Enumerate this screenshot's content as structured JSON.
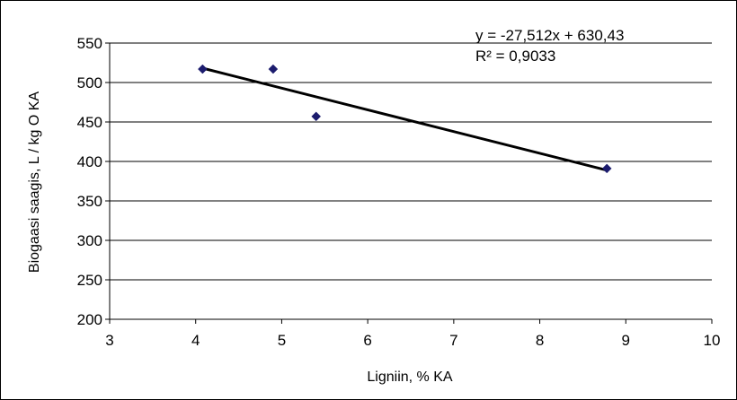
{
  "chart_data": {
    "type": "scatter",
    "title": "",
    "xlabel": "Ligniin, %  KA",
    "ylabel": "Biogaasi saagis, L / kg O KA",
    "xlim": [
      3,
      10
    ],
    "ylim": [
      200,
      550
    ],
    "x_ticks": [
      3,
      4,
      5,
      6,
      7,
      8,
      9,
      10
    ],
    "y_ticks": [
      200,
      250,
      300,
      350,
      400,
      450,
      500,
      550
    ],
    "grid": "horizontal",
    "legend": "none",
    "series": [
      {
        "points": [
          {
            "x": 4.08,
            "y": 517
          },
          {
            "x": 4.9,
            "y": 517
          },
          {
            "x": 5.4,
            "y": 457
          },
          {
            "x": 8.78,
            "y": 391
          }
        ],
        "marker": "diamond",
        "color": "#1c1c6e"
      }
    ],
    "trendline": {
      "type": "linear",
      "slope": -27.512,
      "intercept": 630.43,
      "x_range": [
        4.08,
        8.78
      ],
      "color": "#000000",
      "equation_label": "y = -27,512x + 630,43",
      "r2_label": "R² = 0,9033"
    }
  }
}
